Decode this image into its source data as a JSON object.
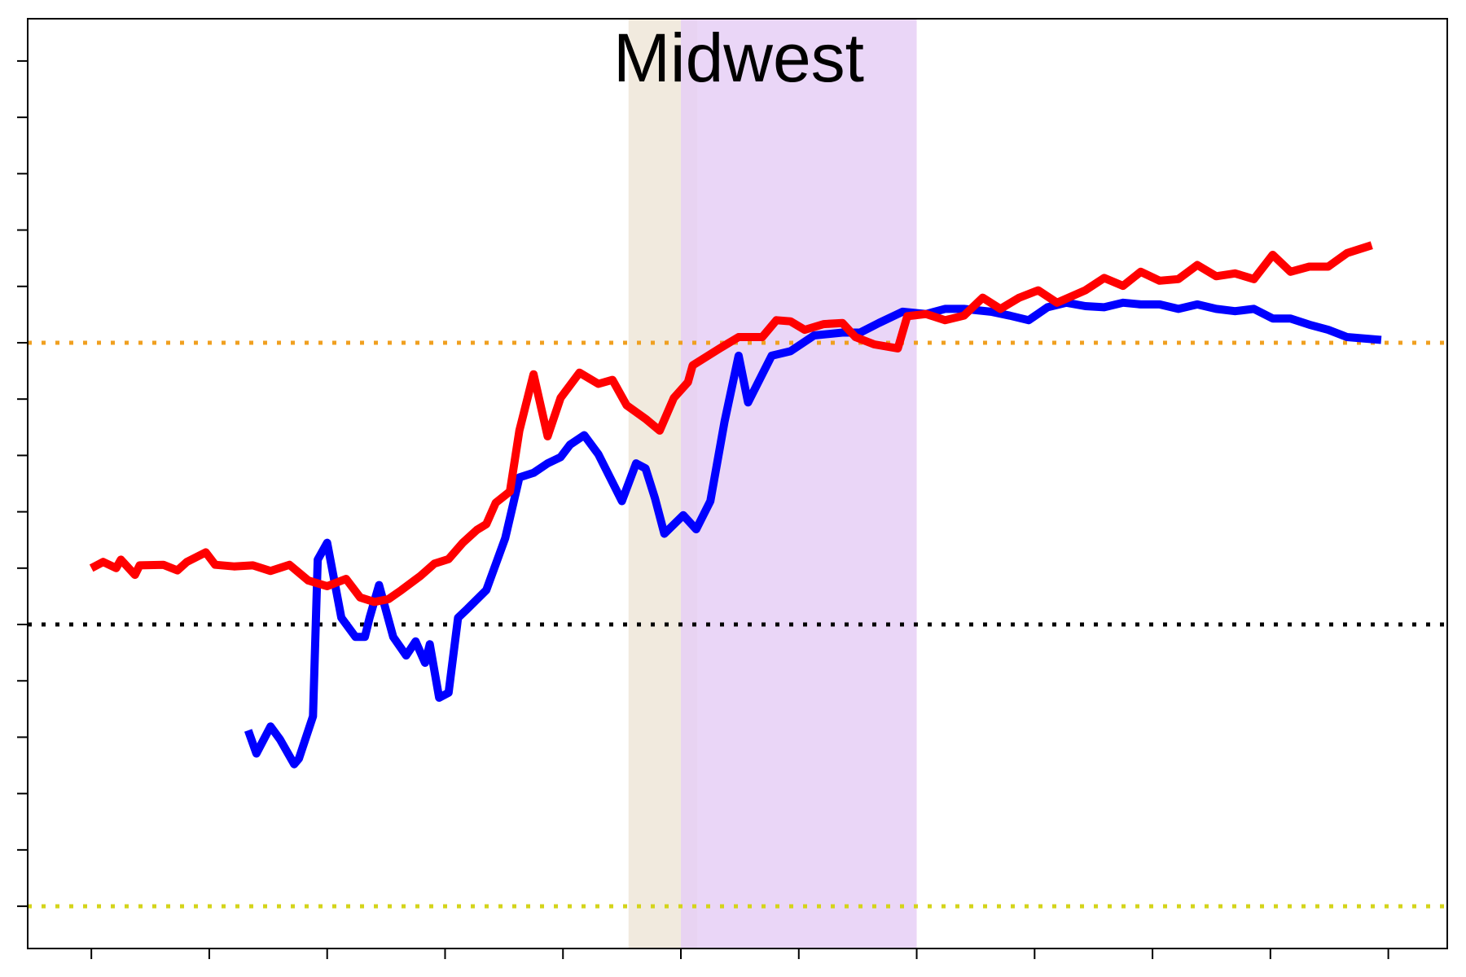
{
  "chart_data": {
    "type": "line",
    "title": "Midwest",
    "xlim": [
      -0.54,
      11.5
    ],
    "ylim": [
      -0.75,
      15.75
    ],
    "xticks": [
      0,
      1,
      2,
      3,
      4,
      5,
      6,
      7,
      8,
      9,
      10,
      11
    ],
    "yticks": [
      0,
      1,
      2,
      3,
      4,
      5,
      6,
      7,
      8,
      9,
      10,
      11,
      12,
      13,
      14,
      15
    ],
    "bands": [
      {
        "x": [
          4.556,
          5.14
        ],
        "color": "#eee6d8"
      },
      {
        "x": [
          5.0,
          7.0
        ],
        "color": "#e6cff6"
      }
    ],
    "hlines": [
      {
        "value": 10,
        "color": "#f0a020"
      },
      {
        "value": 5,
        "color": "#000000"
      },
      {
        "value": 0,
        "color": "#d4d41a"
      }
    ],
    "series": [
      {
        "color": "#0000ff",
        "x": [
          1.33,
          1.4,
          1.52,
          1.6,
          1.72,
          1.76,
          1.88,
          1.92,
          2.0,
          2.12,
          2.24,
          2.32,
          2.36,
          2.44,
          2.56,
          2.67,
          2.75,
          2.83,
          2.87,
          2.95,
          3.03,
          3.11,
          3.19,
          3.35,
          3.51,
          3.63,
          3.75,
          3.87,
          3.98,
          4.06,
          4.18,
          4.3,
          4.5,
          4.62,
          4.7,
          4.78,
          4.86,
          5.02,
          5.13,
          5.25,
          5.37,
          5.49,
          5.57,
          5.69,
          5.77,
          5.93,
          6.13,
          6.37,
          6.52,
          6.68,
          6.88,
          7.08,
          7.24,
          7.4,
          7.63,
          7.79,
          7.95,
          8.11,
          8.27,
          8.43,
          8.59,
          8.75,
          8.9,
          9.06,
          9.22,
          9.38,
          9.54,
          9.7,
          9.86,
          10.02,
          10.17,
          10.33,
          10.49,
          10.65,
          10.94
        ],
        "values": [
          3.12,
          2.71,
          3.19,
          2.96,
          2.52,
          2.62,
          3.37,
          6.15,
          6.45,
          5.12,
          4.78,
          4.78,
          5.12,
          5.7,
          4.78,
          4.45,
          4.7,
          4.32,
          4.65,
          3.7,
          3.79,
          5.12,
          5.28,
          5.61,
          6.53,
          7.61,
          7.69,
          7.86,
          7.97,
          8.19,
          8.36,
          8.02,
          7.19,
          7.86,
          7.77,
          7.24,
          6.61,
          6.94,
          6.69,
          7.19,
          8.6,
          9.77,
          8.94,
          9.44,
          9.77,
          9.85,
          10.13,
          10.18,
          10.18,
          10.35,
          10.55,
          10.51,
          10.6,
          10.6,
          10.55,
          10.48,
          10.4,
          10.63,
          10.71,
          10.65,
          10.63,
          10.71,
          10.68,
          10.68,
          10.6,
          10.68,
          10.6,
          10.56,
          10.6,
          10.43,
          10.43,
          10.32,
          10.23,
          10.1,
          10.05
        ]
      },
      {
        "color": "#ff0000",
        "x": [
          0,
          0.1,
          0.21,
          0.25,
          0.37,
          0.41,
          0.61,
          0.73,
          0.81,
          0.97,
          1.05,
          1.21,
          1.37,
          1.52,
          1.68,
          1.84,
          2.0,
          2.16,
          2.28,
          2.4,
          2.52,
          2.63,
          2.79,
          2.91,
          3.03,
          3.15,
          3.27,
          3.35,
          3.43,
          3.55,
          3.63,
          3.75,
          3.87,
          3.98,
          4.14,
          4.3,
          4.42,
          4.54,
          4.7,
          4.82,
          4.94,
          5.06,
          5.1,
          5.33,
          5.49,
          5.69,
          5.81,
          5.93,
          6.05,
          6.21,
          6.37,
          6.48,
          6.64,
          6.84,
          6.92,
          7.08,
          7.24,
          7.4,
          7.56,
          7.71,
          7.87,
          8.03,
          8.19,
          8.43,
          8.59,
          8.75,
          8.9,
          9.06,
          9.22,
          9.38,
          9.54,
          9.7,
          9.86,
          10.02,
          10.17,
          10.33,
          10.49,
          10.65,
          10.86
        ],
        "values": [
          6.0,
          6.11,
          6.0,
          6.15,
          5.88,
          6.05,
          6.06,
          5.96,
          6.11,
          6.28,
          6.06,
          6.03,
          6.05,
          5.95,
          6.06,
          5.78,
          5.68,
          5.81,
          5.48,
          5.4,
          5.45,
          5.61,
          5.86,
          6.08,
          6.16,
          6.45,
          6.68,
          6.78,
          7.16,
          7.36,
          8.44,
          9.44,
          8.34,
          9.02,
          9.47,
          9.27,
          9.34,
          8.89,
          8.65,
          8.44,
          9.02,
          9.3,
          9.6,
          9.9,
          10.1,
          10.1,
          10.4,
          10.38,
          10.23,
          10.33,
          10.35,
          10.1,
          9.97,
          9.9,
          10.47,
          10.51,
          10.4,
          10.48,
          10.8,
          10.6,
          10.8,
          10.93,
          10.71,
          10.93,
          11.15,
          11.01,
          11.26,
          11.1,
          11.13,
          11.38,
          11.18,
          11.23,
          11.13,
          11.56,
          11.26,
          11.35,
          11.35,
          11.59,
          11.73
        ]
      }
    ]
  }
}
